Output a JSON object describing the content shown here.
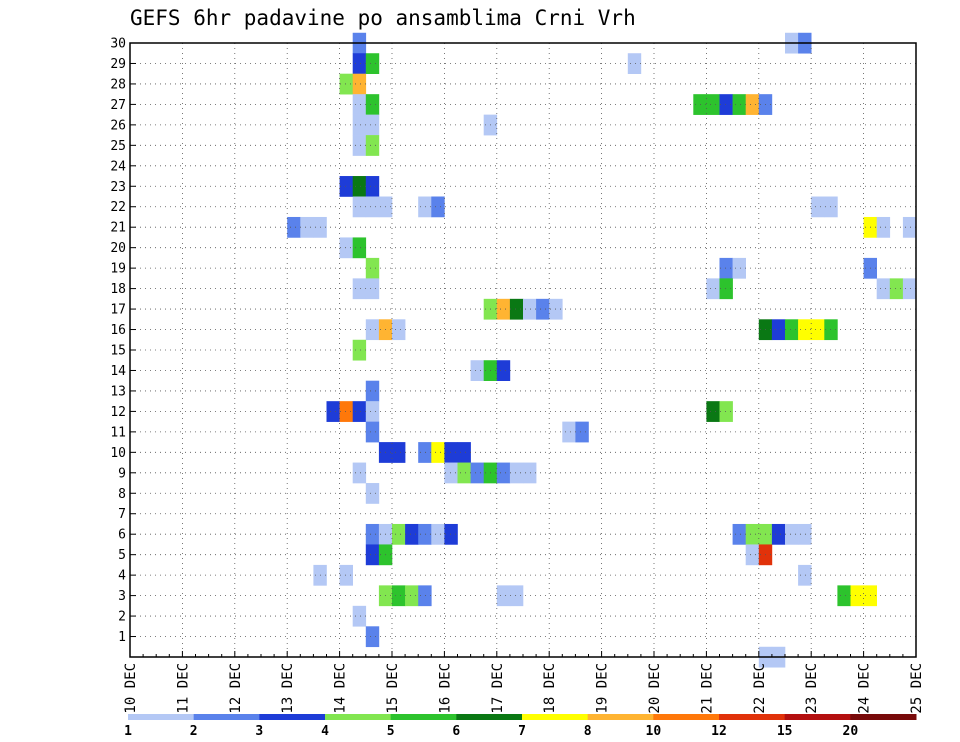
{
  "chart_data": {
    "type": "heatmap",
    "title": "GEFS 6hr padavine po ansamblima Crni Vrh",
    "xlabel": "",
    "ylabel": "",
    "x_axis": {
      "ticks": [
        "10 DEC",
        "11 DEC",
        "12 DEC",
        "13 DEC",
        "14 DEC",
        "15 DEC",
        "16 DEC",
        "17 DEC",
        "18 DEC",
        "19 DEC",
        "20 DEC",
        "21 DEC",
        "22 DEC",
        "23 DEC",
        "24 DEC",
        "25 DEC"
      ],
      "unit": "day, 6-hour steps"
    },
    "y_axis": {
      "ticks": [
        "1",
        "2",
        "3",
        "4",
        "5",
        "6",
        "7",
        "8",
        "9",
        "10",
        "11",
        "12",
        "13",
        "14",
        "15",
        "16",
        "17",
        "18",
        "19",
        "20",
        "21",
        "22",
        "23",
        "24",
        "25",
        "26",
        "27",
        "28",
        "29",
        "30"
      ],
      "ylim": [
        0,
        30
      ]
    },
    "grid": true,
    "colorbar": {
      "position": "bottom",
      "labels": [
        "1",
        "2",
        "3",
        "4",
        "5",
        "6",
        "7",
        "8",
        "10",
        "12",
        "15",
        "20"
      ],
      "colors": [
        "#b4c8f5",
        "#5a82eb",
        "#1e3cd7",
        "#82e650",
        "#2dc32d",
        "#0a7814",
        "#ffff00",
        "#ffb432",
        "#ff780a",
        "#e1320a",
        "#b40f0f",
        "#780a0a"
      ]
    },
    "cells": [
      [
        30,
        4.25,
        2
      ],
      [
        30,
        12.5,
        1
      ],
      [
        30,
        12.75,
        2
      ],
      [
        29,
        4.25,
        3
      ],
      [
        29,
        4.5,
        5
      ],
      [
        29,
        9.5,
        1
      ],
      [
        28,
        4.0,
        4
      ],
      [
        28,
        4.25,
        8
      ],
      [
        27,
        4.25,
        1
      ],
      [
        27,
        4.5,
        5
      ],
      [
        27,
        10.75,
        5
      ],
      [
        27,
        11.0,
        5
      ],
      [
        27,
        11.25,
        3
      ],
      [
        27,
        11.5,
        5
      ],
      [
        27,
        11.75,
        8
      ],
      [
        27,
        12.0,
        2
      ],
      [
        26,
        4.25,
        1
      ],
      [
        26,
        4.5,
        1
      ],
      [
        26,
        6.75,
        1
      ],
      [
        25,
        4.25,
        1
      ],
      [
        25,
        4.5,
        4
      ],
      [
        23,
        4.0,
        3
      ],
      [
        23,
        4.25,
        6
      ],
      [
        23,
        4.5,
        3
      ],
      [
        22,
        4.25,
        1
      ],
      [
        22,
        4.5,
        1
      ],
      [
        22,
        4.75,
        1
      ],
      [
        22,
        5.5,
        1
      ],
      [
        22,
        5.75,
        2
      ],
      [
        22,
        13.0,
        1
      ],
      [
        22,
        13.25,
        1
      ],
      [
        21,
        3.0,
        2
      ],
      [
        21,
        3.25,
        1
      ],
      [
        21,
        3.5,
        1
      ],
      [
        21,
        14.0,
        7
      ],
      [
        21,
        14.25,
        1
      ],
      [
        21,
        14.75,
        1
      ],
      [
        20,
        4.0,
        1
      ],
      [
        20,
        4.25,
        5
      ],
      [
        19,
        4.5,
        4
      ],
      [
        19,
        11.25,
        2
      ],
      [
        19,
        11.5,
        1
      ],
      [
        19,
        14.0,
        2
      ],
      [
        18,
        4.25,
        1
      ],
      [
        18,
        4.5,
        1
      ],
      [
        18,
        11.0,
        1
      ],
      [
        18,
        11.25,
        5
      ],
      [
        18,
        14.25,
        1
      ],
      [
        18,
        14.5,
        4
      ],
      [
        18,
        14.75,
        1
      ],
      [
        17,
        6.75,
        4
      ],
      [
        17,
        7.0,
        8
      ],
      [
        17,
        7.25,
        6
      ],
      [
        17,
        7.5,
        1
      ],
      [
        17,
        7.75,
        2
      ],
      [
        17,
        8.0,
        1
      ],
      [
        16,
        4.5,
        1
      ],
      [
        16,
        4.75,
        8
      ],
      [
        16,
        5.0,
        1
      ],
      [
        16,
        12.0,
        6
      ],
      [
        16,
        12.25,
        3
      ],
      [
        16,
        12.5,
        5
      ],
      [
        16,
        12.75,
        7
      ],
      [
        16,
        13.0,
        7
      ],
      [
        16,
        13.25,
        5
      ],
      [
        15,
        4.25,
        4
      ],
      [
        14,
        6.5,
        1
      ],
      [
        14,
        6.75,
        5
      ],
      [
        14,
        7.0,
        3
      ],
      [
        13,
        4.5,
        2
      ],
      [
        12,
        3.75,
        3
      ],
      [
        12,
        4.0,
        9
      ],
      [
        12,
        4.25,
        3
      ],
      [
        12,
        4.5,
        1
      ],
      [
        12,
        11.0,
        6
      ],
      [
        12,
        11.25,
        4
      ],
      [
        11,
        4.5,
        2
      ],
      [
        11,
        8.25,
        1
      ],
      [
        11,
        8.5,
        2
      ],
      [
        10,
        4.75,
        3
      ],
      [
        10,
        5.0,
        3
      ],
      [
        10,
        5.5,
        2
      ],
      [
        10,
        5.75,
        7
      ],
      [
        10,
        6.0,
        3
      ],
      [
        10,
        6.25,
        3
      ],
      [
        9,
        4.25,
        1
      ],
      [
        9,
        6.0,
        1
      ],
      [
        9,
        6.25,
        4
      ],
      [
        9,
        6.5,
        2
      ],
      [
        9,
        6.75,
        5
      ],
      [
        9,
        7.0,
        2
      ],
      [
        9,
        7.25,
        1
      ],
      [
        9,
        7.5,
        1
      ],
      [
        8,
        4.5,
        1
      ],
      [
        6,
        4.5,
        2
      ],
      [
        6,
        4.75,
        1
      ],
      [
        6,
        5.0,
        4
      ],
      [
        6,
        5.25,
        3
      ],
      [
        6,
        5.5,
        2
      ],
      [
        6,
        5.75,
        1
      ],
      [
        6,
        6.0,
        3
      ],
      [
        6,
        11.5,
        2
      ],
      [
        6,
        11.75,
        4
      ],
      [
        6,
        12.0,
        4
      ],
      [
        6,
        12.25,
        3
      ],
      [
        6,
        12.5,
        1
      ],
      [
        6,
        12.75,
        1
      ],
      [
        5,
        4.5,
        3
      ],
      [
        5,
        4.75,
        5
      ],
      [
        5,
        11.75,
        1
      ],
      [
        5,
        12.0,
        10
      ],
      [
        4,
        3.5,
        1
      ],
      [
        4,
        4.0,
        1
      ],
      [
        4,
        12.75,
        1
      ],
      [
        3,
        4.75,
        4
      ],
      [
        3,
        5.0,
        5
      ],
      [
        3,
        5.25,
        4
      ],
      [
        3,
        5.5,
        2
      ],
      [
        3,
        7.0,
        1
      ],
      [
        3,
        7.25,
        1
      ],
      [
        3,
        13.5,
        5
      ],
      [
        3,
        13.75,
        7
      ],
      [
        3,
        14.0,
        7
      ],
      [
        2,
        4.25,
        1
      ],
      [
        1,
        4.5,
        2
      ],
      [
        0,
        12.0,
        1
      ],
      [
        0,
        12.25,
        1
      ]
    ]
  }
}
